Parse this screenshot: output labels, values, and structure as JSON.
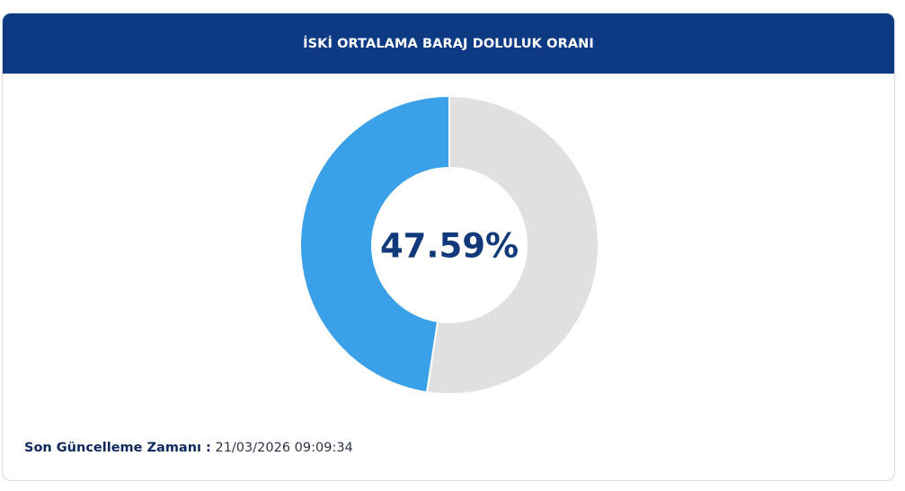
{
  "header": {
    "title": "İSKİ ORTALAMA BARAJ DOLULUK ORANI"
  },
  "chart_data": {
    "type": "pie",
    "variant": "donut",
    "slices": [
      {
        "value": 47.59,
        "color": "#3aa1e8"
      },
      {
        "value": 52.41,
        "color": "#e0e0e0"
      }
    ],
    "center_label": "47.59%",
    "colors": {
      "filled": "#3aa1e8",
      "empty": "#e0e0e0",
      "center_text": "#123a7a",
      "separator": "#ffffff"
    }
  },
  "footer": {
    "label": "Son Güncelleme Zamanı :",
    "value": "21/03/2026 09:09:34"
  }
}
